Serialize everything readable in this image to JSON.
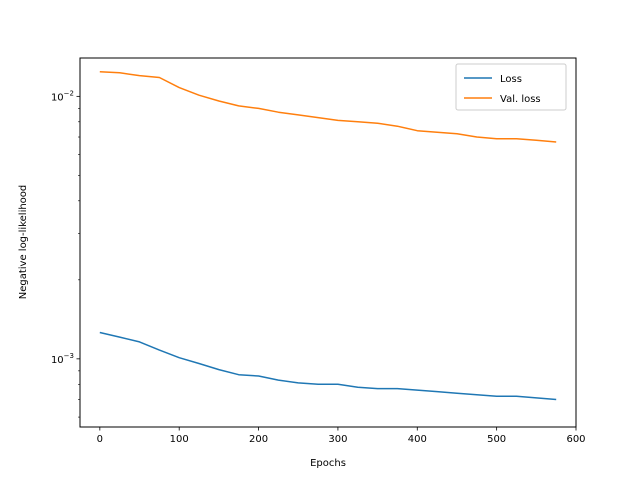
{
  "chart_data": {
    "type": "line",
    "xlabel": "Epochs",
    "ylabel": "Negative log-likelihood",
    "yscale": "log",
    "xlim": [
      -25,
      600
    ],
    "ylim": [
      0.00055,
      0.014
    ],
    "x_ticks": [
      0,
      100,
      200,
      300,
      400,
      500,
      600
    ],
    "y_ticks": [
      {
        "value": 0.001,
        "base": "10",
        "exp": "−3"
      },
      {
        "value": 0.01,
        "base": "10",
        "exp": "−2"
      }
    ],
    "legend_position": "top-right",
    "grid": false,
    "series": [
      {
        "name": "Loss",
        "color": "#1f77b4",
        "points": [
          [
            0,
            0.00126
          ],
          [
            25,
            0.00121
          ],
          [
            50,
            0.00116
          ],
          [
            75,
            0.00108
          ],
          [
            100,
            0.00101
          ],
          [
            125,
            0.00096
          ],
          [
            150,
            0.00091
          ],
          [
            175,
            0.00087
          ],
          [
            200,
            0.00086
          ],
          [
            225,
            0.00083
          ],
          [
            250,
            0.00081
          ],
          [
            275,
            0.0008
          ],
          [
            300,
            0.0008
          ],
          [
            325,
            0.00078
          ],
          [
            350,
            0.00077
          ],
          [
            375,
            0.00077
          ],
          [
            400,
            0.00076
          ],
          [
            425,
            0.00075
          ],
          [
            450,
            0.00074
          ],
          [
            475,
            0.00073
          ],
          [
            500,
            0.00072
          ],
          [
            525,
            0.00072
          ],
          [
            550,
            0.00071
          ],
          [
            575,
            0.0007
          ]
        ]
      },
      {
        "name": "Val. loss",
        "color": "#ff7f0e",
        "points": [
          [
            0,
            0.0124
          ],
          [
            25,
            0.0123
          ],
          [
            50,
            0.012
          ],
          [
            75,
            0.0118
          ],
          [
            100,
            0.0108
          ],
          [
            125,
            0.0101
          ],
          [
            150,
            0.0096
          ],
          [
            175,
            0.0092
          ],
          [
            200,
            0.009
          ],
          [
            225,
            0.0087
          ],
          [
            250,
            0.0085
          ],
          [
            275,
            0.0083
          ],
          [
            300,
            0.0081
          ],
          [
            325,
            0.008
          ],
          [
            350,
            0.0079
          ],
          [
            375,
            0.0077
          ],
          [
            400,
            0.0074
          ],
          [
            425,
            0.0073
          ],
          [
            450,
            0.0072
          ],
          [
            475,
            0.007
          ],
          [
            500,
            0.0069
          ],
          [
            525,
            0.0069
          ],
          [
            550,
            0.0068
          ],
          [
            575,
            0.0067
          ]
        ]
      }
    ]
  }
}
